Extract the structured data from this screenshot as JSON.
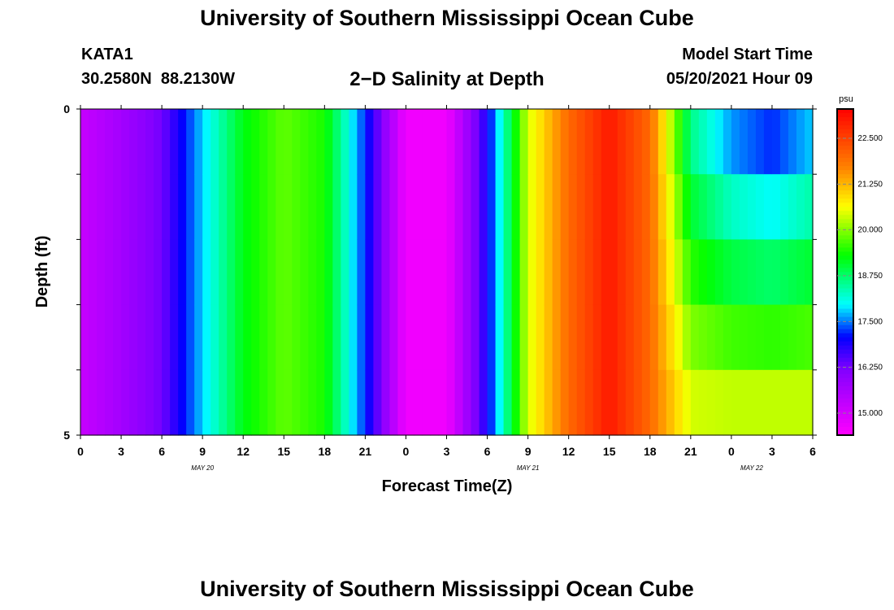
{
  "header": {
    "title": "University of Southern Mississippi Ocean Cube",
    "station": "KATA1",
    "coords": "30.2580N  88.2130W",
    "subtitle": "2−D Salinity at Depth",
    "model_label": "Model Start Time",
    "model_time": "05/20/2021 Hour 09"
  },
  "footer": {
    "title": "University of Southern Mississippi Ocean Cube"
  },
  "chart_data": {
    "type": "heatmap",
    "title": "2−D Salinity at Depth",
    "xlabel": "Forecast Time(Z)",
    "ylabel": "Depth (ft)",
    "x_tick_labels": [
      "0",
      "3",
      "6",
      "9",
      "12",
      "15",
      "18",
      "21",
      "0",
      "3",
      "6",
      "9",
      "12",
      "15",
      "18",
      "21",
      "0",
      "3",
      "6"
    ],
    "date_labels": [
      {
        "label": "MAY 20",
        "tick_index": 3
      },
      {
        "label": "MAY 21",
        "tick_index": 11
      },
      {
        "label": "MAY 22",
        "tick_index": 16.5
      }
    ],
    "y_tick_labels": [
      "0",
      "5"
    ],
    "ylim": [
      0,
      5
    ],
    "colorbar": {
      "unit": "psu",
      "range": [
        14.4,
        23.3
      ],
      "ticks": [
        "15.000",
        "16.250",
        "17.500",
        "18.750",
        "20.000",
        "21.250",
        "22.500"
      ]
    },
    "depth_layers": 5,
    "x_hours": [
      0,
      3,
      6,
      9,
      12,
      15,
      18,
      21,
      24,
      27,
      30,
      33,
      36,
      39,
      42,
      45,
      48,
      51,
      54
    ],
    "surface_salinity_psu": [
      15.2,
      15.7,
      16.3,
      17.8,
      19.2,
      19.8,
      19.4,
      17.2,
      14.6,
      14.6,
      16.9,
      20.4,
      22.0,
      23.0,
      22.0,
      18.6,
      17.6,
      17.2,
      17.8
    ],
    "bottom_layer_salinity_psu": [
      15.2,
      15.7,
      16.3,
      17.8,
      19.2,
      19.8,
      19.4,
      17.2,
      14.6,
      14.6,
      16.9,
      20.4,
      22.0,
      23.0,
      22.0,
      20.4,
      20.3,
      20.3,
      20.3
    ]
  }
}
